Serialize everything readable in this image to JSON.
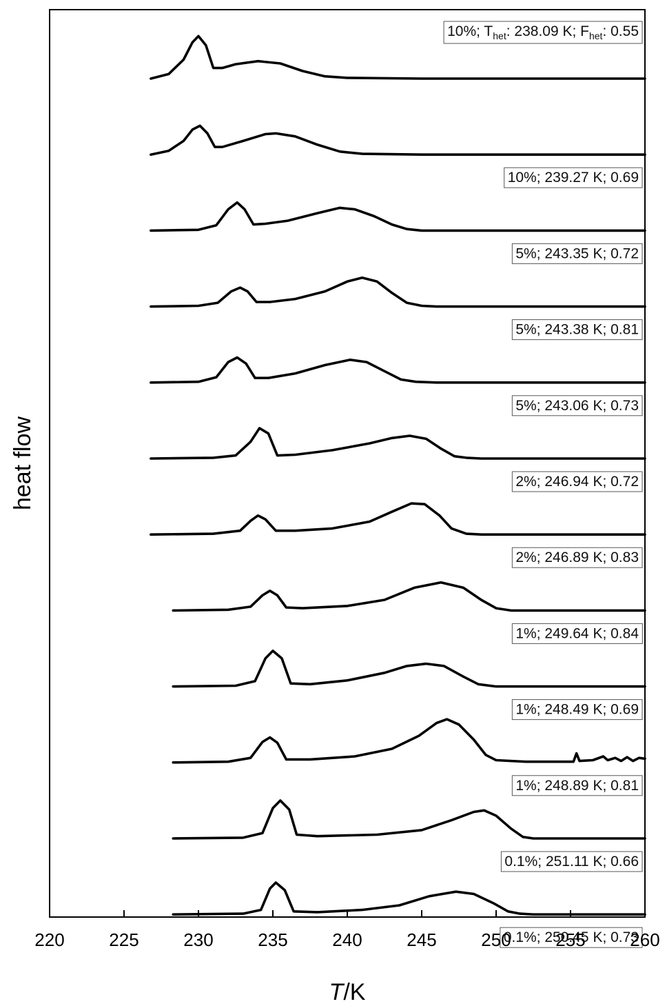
{
  "chart_data": {
    "type": "line",
    "xlabel_italic": "T",
    "xlabel_unit": "/K",
    "ylabel": "heat flow",
    "xlim": [
      220,
      260
    ],
    "xticks": [
      "220",
      "225",
      "230",
      "235",
      "240",
      "245",
      "250",
      "255",
      "260"
    ],
    "grid": false,
    "series": [
      {
        "label_parts": [
          "10%; T",
          "het",
          ": 238.09 K; F",
          "het",
          ": 0.55"
        ],
        "x_start": 226.8,
        "points": [
          [
            226.8,
            0.0
          ],
          [
            228.0,
            0.06
          ],
          [
            229.0,
            0.25
          ],
          [
            229.6,
            0.48
          ],
          [
            230.0,
            0.56
          ],
          [
            230.5,
            0.44
          ],
          [
            231.0,
            0.14
          ],
          [
            231.6,
            0.14
          ],
          [
            232.5,
            0.19
          ],
          [
            234.0,
            0.23
          ],
          [
            235.5,
            0.2
          ],
          [
            237.0,
            0.1
          ],
          [
            238.5,
            0.03
          ],
          [
            240.0,
            0.01
          ],
          [
            245.0,
            0.0
          ],
          [
            260.0,
            0.0
          ]
        ]
      },
      {
        "label": "10%; 239.27 K; 0.69",
        "x_start": 226.8,
        "points": [
          [
            226.8,
            0.0
          ],
          [
            228.0,
            0.05
          ],
          [
            229.0,
            0.18
          ],
          [
            229.6,
            0.33
          ],
          [
            230.1,
            0.38
          ],
          [
            230.6,
            0.28
          ],
          [
            231.1,
            0.1
          ],
          [
            231.6,
            0.1
          ],
          [
            233.0,
            0.18
          ],
          [
            234.5,
            0.27
          ],
          [
            235.2,
            0.28
          ],
          [
            236.5,
            0.24
          ],
          [
            238.0,
            0.13
          ],
          [
            239.5,
            0.04
          ],
          [
            241.0,
            0.01
          ],
          [
            245.0,
            0.0
          ],
          [
            260.0,
            0.0
          ]
        ]
      },
      {
        "label": "5%; 243.35 K; 0.72",
        "x_start": 226.8,
        "points": [
          [
            226.8,
            0.0
          ],
          [
            230.0,
            0.01
          ],
          [
            231.2,
            0.07
          ],
          [
            232.0,
            0.28
          ],
          [
            232.6,
            0.37
          ],
          [
            233.1,
            0.28
          ],
          [
            233.7,
            0.08
          ],
          [
            234.5,
            0.09
          ],
          [
            236.0,
            0.13
          ],
          [
            238.0,
            0.23
          ],
          [
            239.5,
            0.3
          ],
          [
            240.5,
            0.28
          ],
          [
            241.8,
            0.19
          ],
          [
            243.0,
            0.08
          ],
          [
            244.0,
            0.02
          ],
          [
            245.0,
            0.0
          ],
          [
            260.0,
            0.0
          ]
        ]
      },
      {
        "label": "5%; 243.38 K; 0.81",
        "x_start": 226.8,
        "points": [
          [
            226.8,
            0.0
          ],
          [
            230.0,
            0.01
          ],
          [
            231.3,
            0.05
          ],
          [
            232.2,
            0.2
          ],
          [
            232.8,
            0.25
          ],
          [
            233.3,
            0.2
          ],
          [
            233.9,
            0.06
          ],
          [
            234.8,
            0.06
          ],
          [
            236.5,
            0.1
          ],
          [
            238.5,
            0.2
          ],
          [
            240.0,
            0.33
          ],
          [
            241.0,
            0.38
          ],
          [
            242.0,
            0.33
          ],
          [
            243.0,
            0.18
          ],
          [
            244.0,
            0.05
          ],
          [
            245.0,
            0.01
          ],
          [
            246.0,
            0.0
          ],
          [
            260.0,
            0.0
          ]
        ]
      },
      {
        "label": "5%; 243.06 K; 0.73",
        "x_start": 226.8,
        "points": [
          [
            226.8,
            0.0
          ],
          [
            230.0,
            0.01
          ],
          [
            231.2,
            0.07
          ],
          [
            232.0,
            0.27
          ],
          [
            232.6,
            0.33
          ],
          [
            233.2,
            0.25
          ],
          [
            233.8,
            0.06
          ],
          [
            234.7,
            0.06
          ],
          [
            236.5,
            0.12
          ],
          [
            238.5,
            0.23
          ],
          [
            240.2,
            0.3
          ],
          [
            241.3,
            0.27
          ],
          [
            242.5,
            0.15
          ],
          [
            243.6,
            0.04
          ],
          [
            244.6,
            0.01
          ],
          [
            246.0,
            0.0
          ],
          [
            260.0,
            0.0
          ]
        ]
      },
      {
        "label": "2%; 246.94 K; 0.72",
        "x_start": 226.8,
        "points": [
          [
            226.8,
            0.0
          ],
          [
            231.0,
            0.01
          ],
          [
            232.5,
            0.04
          ],
          [
            233.5,
            0.22
          ],
          [
            234.1,
            0.4
          ],
          [
            234.7,
            0.33
          ],
          [
            235.3,
            0.04
          ],
          [
            236.5,
            0.05
          ],
          [
            239.0,
            0.11
          ],
          [
            241.5,
            0.2
          ],
          [
            243.0,
            0.27
          ],
          [
            244.2,
            0.3
          ],
          [
            245.3,
            0.26
          ],
          [
            246.3,
            0.13
          ],
          [
            247.2,
            0.03
          ],
          [
            248.0,
            0.01
          ],
          [
            249.0,
            0.0
          ],
          [
            260.0,
            0.0
          ]
        ]
      },
      {
        "label": "2%; 246.89 K; 0.83",
        "x_start": 226.8,
        "points": [
          [
            226.8,
            0.0
          ],
          [
            231.0,
            0.01
          ],
          [
            232.8,
            0.05
          ],
          [
            233.5,
            0.18
          ],
          [
            234.0,
            0.25
          ],
          [
            234.5,
            0.2
          ],
          [
            235.2,
            0.05
          ],
          [
            236.5,
            0.05
          ],
          [
            239.0,
            0.08
          ],
          [
            241.5,
            0.17
          ],
          [
            243.0,
            0.3
          ],
          [
            244.3,
            0.41
          ],
          [
            245.2,
            0.4
          ],
          [
            246.2,
            0.25
          ],
          [
            247.0,
            0.08
          ],
          [
            248.0,
            0.01
          ],
          [
            249.0,
            0.0
          ],
          [
            260.0,
            0.0
          ]
        ]
      },
      {
        "label": "1%; 249.64 K; 0.84",
        "x_start": 228.3,
        "points": [
          [
            228.3,
            0.0
          ],
          [
            232.0,
            0.01
          ],
          [
            233.5,
            0.05
          ],
          [
            234.3,
            0.2
          ],
          [
            234.8,
            0.26
          ],
          [
            235.3,
            0.2
          ],
          [
            235.9,
            0.04
          ],
          [
            237.0,
            0.03
          ],
          [
            240.0,
            0.06
          ],
          [
            242.5,
            0.14
          ],
          [
            244.5,
            0.3
          ],
          [
            246.3,
            0.37
          ],
          [
            247.8,
            0.3
          ],
          [
            249.0,
            0.14
          ],
          [
            250.0,
            0.03
          ],
          [
            251.0,
            0.0
          ],
          [
            260.0,
            0.0
          ]
        ]
      },
      {
        "label": "1%; 248.49 K; 0.69",
        "x_start": 228.3,
        "points": [
          [
            228.3,
            0.0
          ],
          [
            232.5,
            0.01
          ],
          [
            233.8,
            0.07
          ],
          [
            234.5,
            0.37
          ],
          [
            235.0,
            0.47
          ],
          [
            235.6,
            0.37
          ],
          [
            236.2,
            0.04
          ],
          [
            237.5,
            0.03
          ],
          [
            240.0,
            0.08
          ],
          [
            242.5,
            0.18
          ],
          [
            244.0,
            0.27
          ],
          [
            245.3,
            0.3
          ],
          [
            246.5,
            0.27
          ],
          [
            247.8,
            0.13
          ],
          [
            248.8,
            0.03
          ],
          [
            250.0,
            0.0
          ],
          [
            260.0,
            0.0
          ]
        ]
      },
      {
        "label": "1%; 248.89 K; 0.81",
        "x_start": 228.3,
        "points": [
          [
            228.3,
            0.0
          ],
          [
            232.0,
            0.01
          ],
          [
            233.5,
            0.06
          ],
          [
            234.3,
            0.27
          ],
          [
            234.8,
            0.33
          ],
          [
            235.3,
            0.26
          ],
          [
            235.9,
            0.04
          ],
          [
            237.5,
            0.04
          ],
          [
            240.5,
            0.08
          ],
          [
            243.0,
            0.18
          ],
          [
            244.8,
            0.35
          ],
          [
            246.0,
            0.52
          ],
          [
            246.7,
            0.57
          ],
          [
            247.5,
            0.5
          ],
          [
            248.5,
            0.3
          ],
          [
            249.3,
            0.1
          ],
          [
            250.0,
            0.03
          ],
          [
            252.0,
            0.01
          ],
          [
            255.2,
            0.01
          ],
          [
            255.4,
            0.12
          ],
          [
            255.6,
            0.02
          ],
          [
            256.5,
            0.03
          ],
          [
            257.2,
            0.08
          ],
          [
            257.5,
            0.03
          ],
          [
            258.0,
            0.06
          ],
          [
            258.4,
            0.02
          ],
          [
            258.8,
            0.07
          ],
          [
            259.2,
            0.02
          ],
          [
            259.6,
            0.06
          ],
          [
            260.0,
            0.05
          ]
        ]
      },
      {
        "label": "0.1%; 251.11 K; 0.66",
        "x_start": 228.3,
        "points": [
          [
            228.3,
            0.0
          ],
          [
            233.0,
            0.01
          ],
          [
            234.3,
            0.07
          ],
          [
            235.0,
            0.4
          ],
          [
            235.5,
            0.5
          ],
          [
            236.1,
            0.38
          ],
          [
            236.6,
            0.05
          ],
          [
            238.0,
            0.03
          ],
          [
            242.0,
            0.05
          ],
          [
            245.0,
            0.11
          ],
          [
            247.0,
            0.24
          ],
          [
            248.5,
            0.35
          ],
          [
            249.2,
            0.37
          ],
          [
            250.0,
            0.3
          ],
          [
            251.0,
            0.13
          ],
          [
            251.8,
            0.02
          ],
          [
            252.5,
            0.0
          ],
          [
            260.0,
            0.0
          ]
        ]
      },
      {
        "label": "0.1%; 250.45 K; 0.73",
        "x_start": 228.3,
        "points": [
          [
            228.3,
            0.0
          ],
          [
            233.0,
            0.01
          ],
          [
            234.2,
            0.06
          ],
          [
            234.8,
            0.34
          ],
          [
            235.2,
            0.42
          ],
          [
            235.8,
            0.32
          ],
          [
            236.4,
            0.04
          ],
          [
            238.0,
            0.03
          ],
          [
            241.0,
            0.06
          ],
          [
            243.5,
            0.12
          ],
          [
            245.5,
            0.24
          ],
          [
            247.3,
            0.3
          ],
          [
            248.5,
            0.27
          ],
          [
            249.8,
            0.15
          ],
          [
            250.8,
            0.04
          ],
          [
            251.6,
            0.01
          ],
          [
            252.5,
            0.0
          ],
          [
            260.0,
            0.0
          ]
        ]
      }
    ]
  }
}
